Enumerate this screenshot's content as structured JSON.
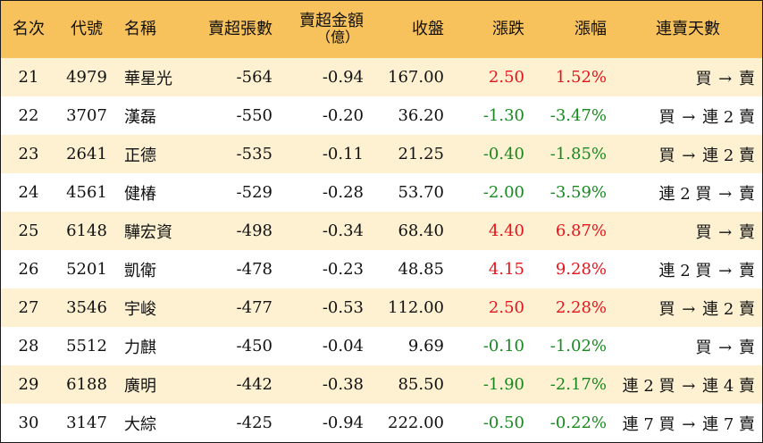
{
  "columns": {
    "rank": "名次",
    "code": "代號",
    "name": "名稱",
    "net_sell_lots": "賣超張數",
    "net_sell_amount": "賣超金額",
    "net_sell_amount_unit": "（億）",
    "close": "收盤",
    "change": "漲跌",
    "change_pct": "漲幅",
    "streak": "連賣天數"
  },
  "colors": {
    "header_bg": "#f7c15c",
    "odd_row_bg": "#fdf1d2",
    "up": "#e5141c",
    "down": "#18891f"
  },
  "rows": [
    {
      "rank": "21",
      "code": "4979",
      "name": "華星光",
      "lots": "-564",
      "amount": "-0.94",
      "close": "167.00",
      "change": "2.50",
      "pct": "1.52%",
      "dir": "up",
      "streak_from": "買",
      "streak_to": "賣"
    },
    {
      "rank": "22",
      "code": "3707",
      "name": "漢磊",
      "lots": "-550",
      "amount": "-0.20",
      "close": "36.20",
      "change": "-1.30",
      "pct": "-3.47%",
      "dir": "down",
      "streak_from": "買",
      "streak_to": "連 2 賣"
    },
    {
      "rank": "23",
      "code": "2641",
      "name": "正德",
      "lots": "-535",
      "amount": "-0.11",
      "close": "21.25",
      "change": "-0.40",
      "pct": "-1.85%",
      "dir": "down",
      "streak_from": "買",
      "streak_to": "連 2 賣"
    },
    {
      "rank": "24",
      "code": "4561",
      "name": "健椿",
      "lots": "-529",
      "amount": "-0.28",
      "close": "53.70",
      "change": "-2.00",
      "pct": "-3.59%",
      "dir": "down",
      "streak_from": "連 2 買",
      "streak_to": "賣"
    },
    {
      "rank": "25",
      "code": "6148",
      "name": "驊宏資",
      "lots": "-498",
      "amount": "-0.34",
      "close": "68.40",
      "change": "4.40",
      "pct": "6.87%",
      "dir": "up",
      "streak_from": "買",
      "streak_to": "賣"
    },
    {
      "rank": "26",
      "code": "5201",
      "name": "凱衛",
      "lots": "-478",
      "amount": "-0.23",
      "close": "48.85",
      "change": "4.15",
      "pct": "9.28%",
      "dir": "up",
      "streak_from": "連 2 買",
      "streak_to": "賣"
    },
    {
      "rank": "27",
      "code": "3546",
      "name": "宇峻",
      "lots": "-477",
      "amount": "-0.53",
      "close": "112.00",
      "change": "2.50",
      "pct": "2.28%",
      "dir": "up",
      "streak_from": "買",
      "streak_to": "連 2 賣"
    },
    {
      "rank": "28",
      "code": "5512",
      "name": "力麒",
      "lots": "-450",
      "amount": "-0.04",
      "close": "9.69",
      "change": "-0.10",
      "pct": "-1.02%",
      "dir": "down",
      "streak_from": "買",
      "streak_to": "賣"
    },
    {
      "rank": "29",
      "code": "6188",
      "name": "廣明",
      "lots": "-442",
      "amount": "-0.38",
      "close": "85.50",
      "change": "-1.90",
      "pct": "-2.17%",
      "dir": "down",
      "streak_from": "連 2 買",
      "streak_to": "連 4 賣"
    },
    {
      "rank": "30",
      "code": "3147",
      "name": "大綜",
      "lots": "-425",
      "amount": "-0.94",
      "close": "222.00",
      "change": "-0.50",
      "pct": "-0.22%",
      "dir": "down",
      "streak_from": "連 7 買",
      "streak_to": "連 7 賣"
    }
  ],
  "arrow_glyph": "→"
}
